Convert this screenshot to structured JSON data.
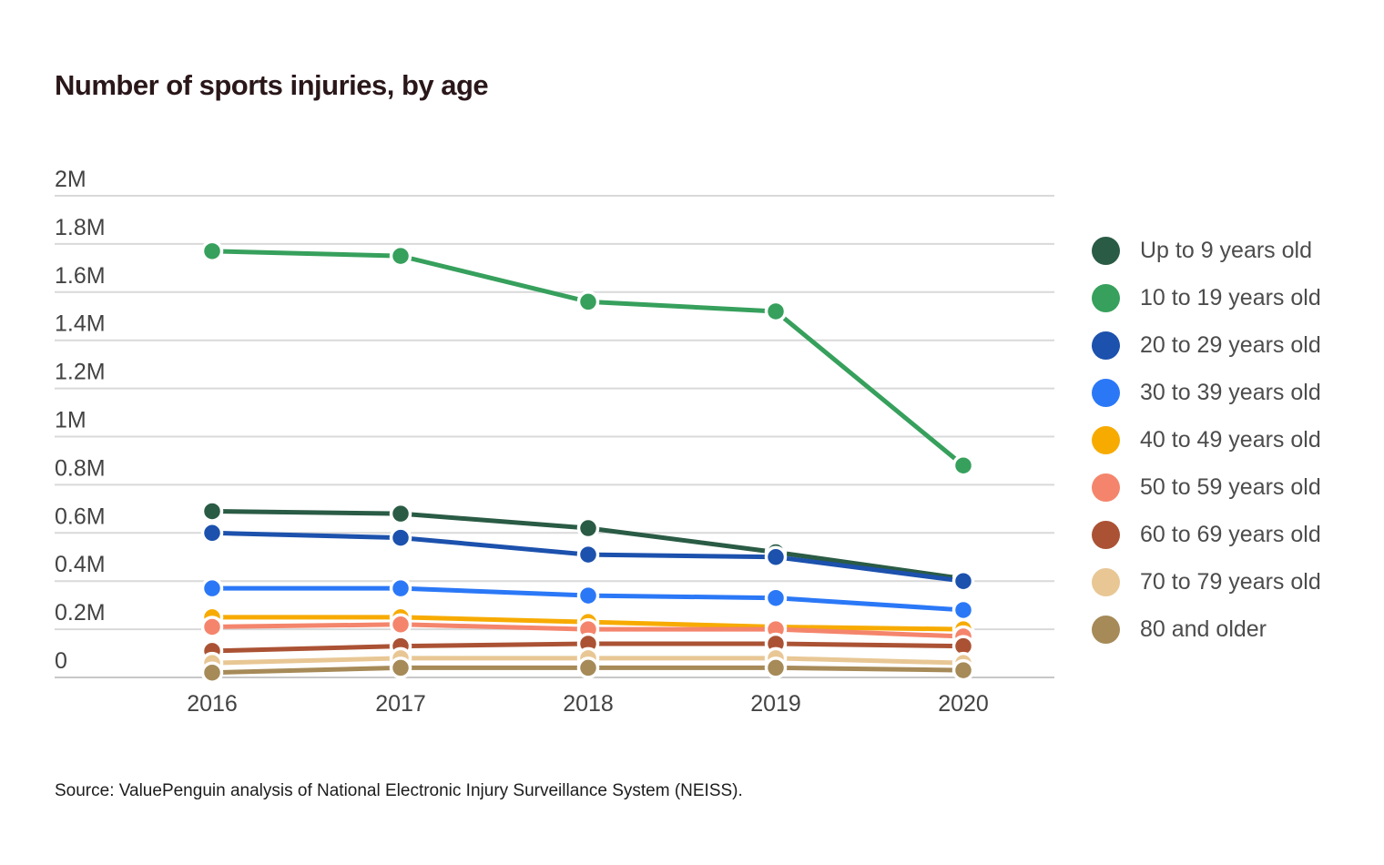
{
  "page": {
    "title": "Number of sports injuries, by age",
    "source": "Source: ValuePenguin analysis of National Electronic Injury Surveillance System (NEISS)."
  },
  "colors": {
    "background": "#ffffff",
    "title_text": "#2a171a",
    "axis_text": "#434343",
    "legend_text": "#4c4c4c",
    "source_text": "#1c1c1c",
    "gridline": "#d9d9d9",
    "baseline": "#c7c7c7"
  },
  "chart_data": {
    "type": "line",
    "title": "Number of sports injuries, by age",
    "x": [
      "2016",
      "2017",
      "2018",
      "2019",
      "2020"
    ],
    "xlabel": "",
    "ylabel": "",
    "y_unit": "injuries per year",
    "ylim": [
      0,
      2000000
    ],
    "grid": "horizontal",
    "legend_position": "right",
    "markers": true,
    "y_ticks": [
      {
        "value": 0,
        "label": "0"
      },
      {
        "value": 200000,
        "label": "0.2M"
      },
      {
        "value": 400000,
        "label": "0.4M"
      },
      {
        "value": 600000,
        "label": "0.6M"
      },
      {
        "value": 800000,
        "label": "0.8M"
      },
      {
        "value": 1000000,
        "label": "1M"
      },
      {
        "value": 1200000,
        "label": "1.2M"
      },
      {
        "value": 1400000,
        "label": "1.4M"
      },
      {
        "value": 1600000,
        "label": "1.6M"
      },
      {
        "value": 1800000,
        "label": "1.8M"
      },
      {
        "value": 2000000,
        "label": "2M"
      }
    ],
    "series": [
      {
        "name": "Up to 9 years old",
        "color": "#2a5b45",
        "values": [
          690000,
          680000,
          620000,
          520000,
          410000
        ]
      },
      {
        "name": "10 to 19 years old",
        "color": "#36a05c",
        "values": [
          1770000,
          1750000,
          1560000,
          1520000,
          880000
        ]
      },
      {
        "name": "20 to 29 years old",
        "color": "#1c51ad",
        "values": [
          600000,
          580000,
          510000,
          500000,
          400000
        ]
      },
      {
        "name": "30 to 39 years old",
        "color": "#2b78f7",
        "values": [
          370000,
          370000,
          340000,
          330000,
          280000
        ]
      },
      {
        "name": "40 to 49 years old",
        "color": "#f7ab00",
        "values": [
          250000,
          250000,
          230000,
          210000,
          200000
        ]
      },
      {
        "name": "50 to 59 years old",
        "color": "#f4856c",
        "values": [
          210000,
          220000,
          200000,
          200000,
          170000
        ]
      },
      {
        "name": "60 to 69 years old",
        "color": "#ab5234",
        "values": [
          110000,
          130000,
          140000,
          140000,
          130000
        ]
      },
      {
        "name": "70 to 79 years old",
        "color": "#e8c795",
        "values": [
          60000,
          80000,
          80000,
          80000,
          60000
        ]
      },
      {
        "name": "80 and older",
        "color": "#a68a58",
        "values": [
          20000,
          40000,
          40000,
          40000,
          30000
        ]
      }
    ]
  }
}
